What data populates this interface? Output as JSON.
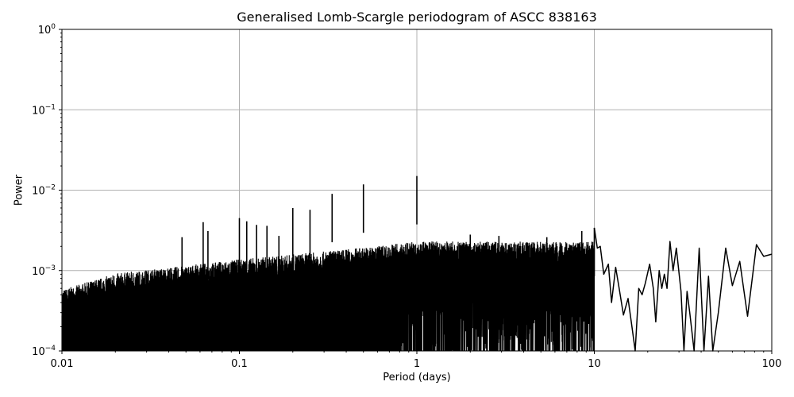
{
  "chart_data": {
    "type": "line",
    "title": "Generalised Lomb-Scargle periodogram of ASCC 838163",
    "xlabel": "Period (days)",
    "ylabel": "Power",
    "xscale": "log",
    "yscale": "log",
    "xlim": [
      0.01,
      100
    ],
    "ylim": [
      0.0001,
      1
    ],
    "grid": true,
    "legend": null,
    "x_ticks": [
      {
        "value": 0.01,
        "label": "0.01"
      },
      {
        "value": 0.1,
        "label": "0.1"
      },
      {
        "value": 1,
        "label": "1"
      },
      {
        "value": 10,
        "label": "10"
      },
      {
        "value": 100,
        "label": "100"
      }
    ],
    "y_ticks": [
      {
        "value": 1,
        "label": "10^0"
      },
      {
        "value": 0.1,
        "label": "10^-1"
      },
      {
        "value": 0.01,
        "label": "10^-2"
      },
      {
        "value": 0.001,
        "label": "10^-3"
      },
      {
        "value": 0.0001,
        "label": "10^-4"
      }
    ],
    "series": [
      {
        "name": "power",
        "color": "#000000",
        "notable_peaks": [
          {
            "period": 0.0475,
            "power": 0.0026
          },
          {
            "period": 0.0625,
            "power": 0.004
          },
          {
            "period": 0.0665,
            "power": 0.0031
          },
          {
            "period": 0.1,
            "power": 0.0045
          },
          {
            "period": 0.11,
            "power": 0.0041
          },
          {
            "period": 0.125,
            "power": 0.0037
          },
          {
            "period": 0.143,
            "power": 0.0036
          },
          {
            "period": 0.167,
            "power": 0.0027
          },
          {
            "period": 0.2,
            "power": 0.006
          },
          {
            "period": 0.25,
            "power": 0.0057
          },
          {
            "period": 0.333,
            "power": 0.009
          },
          {
            "period": 0.5,
            "power": 0.0118
          },
          {
            "period": 1.0,
            "power": 0.015
          },
          {
            "period": 2.0,
            "power": 0.0028
          },
          {
            "period": 2.9,
            "power": 0.0027
          },
          {
            "period": 5.4,
            "power": 0.0026
          },
          {
            "period": 8.5,
            "power": 0.0031
          },
          {
            "period": 10.0,
            "power": 0.0034
          },
          {
            "period": 20.5,
            "power": 0.0012
          },
          {
            "period": 26.5,
            "power": 0.0023
          },
          {
            "period": 29.0,
            "power": 0.0019
          },
          {
            "period": 39.0,
            "power": 0.0019
          },
          {
            "period": 55.0,
            "power": 0.0019
          },
          {
            "period": 66.0,
            "power": 0.0013
          },
          {
            "period": 82.0,
            "power": 0.0021
          },
          {
            "period": 100.0,
            "power": 0.0016
          }
        ],
        "noise_floor_envelope": [
          {
            "period": 0.01,
            "power": 0.0005
          },
          {
            "period": 0.02,
            "power": 0.0008
          },
          {
            "period": 0.05,
            "power": 0.001
          },
          {
            "period": 0.1,
            "power": 0.0012
          },
          {
            "period": 0.3,
            "power": 0.0015
          },
          {
            "period": 1.0,
            "power": 0.002
          }
        ],
        "smooth_tail": [
          [
            10.0,
            0.0034
          ],
          [
            10.4,
            0.0019
          ],
          [
            10.8,
            0.002
          ],
          [
            11.3,
            0.0009
          ],
          [
            12.0,
            0.0012
          ],
          [
            12.5,
            0.0004
          ],
          [
            13.2,
            0.0011
          ],
          [
            13.8,
            0.0006
          ],
          [
            14.6,
            0.00028
          ],
          [
            15.5,
            0.00045
          ],
          [
            16.3,
            0.0002
          ],
          [
            17.0,
            0.0001
          ],
          [
            17.8,
            0.0006
          ],
          [
            18.6,
            0.0005
          ],
          [
            19.4,
            0.0007
          ],
          [
            20.5,
            0.0012
          ],
          [
            21.5,
            0.0006
          ],
          [
            22.2,
            0.00023
          ],
          [
            23.2,
            0.001
          ],
          [
            24.0,
            0.0006
          ],
          [
            24.8,
            0.0009
          ],
          [
            25.7,
            0.0006
          ],
          [
            26.7,
            0.0023
          ],
          [
            27.8,
            0.001
          ],
          [
            29.0,
            0.0019
          ],
          [
            30.8,
            0.00055
          ],
          [
            32.0,
            0.0001
          ],
          [
            33.3,
            0.00055
          ],
          [
            34.5,
            0.0003
          ],
          [
            36.5,
            0.0001
          ],
          [
            39.0,
            0.0019
          ],
          [
            41.5,
            0.0001
          ],
          [
            44.0,
            0.00085
          ],
          [
            46.5,
            0.0001
          ],
          [
            50.0,
            0.0003
          ],
          [
            55.0,
            0.0019
          ],
          [
            60.0,
            0.00065
          ],
          [
            66.0,
            0.0013
          ],
          [
            73.0,
            0.00027
          ],
          [
            82.0,
            0.0021
          ],
          [
            90.0,
            0.0015
          ],
          [
            100.0,
            0.0016
          ]
        ]
      }
    ]
  }
}
